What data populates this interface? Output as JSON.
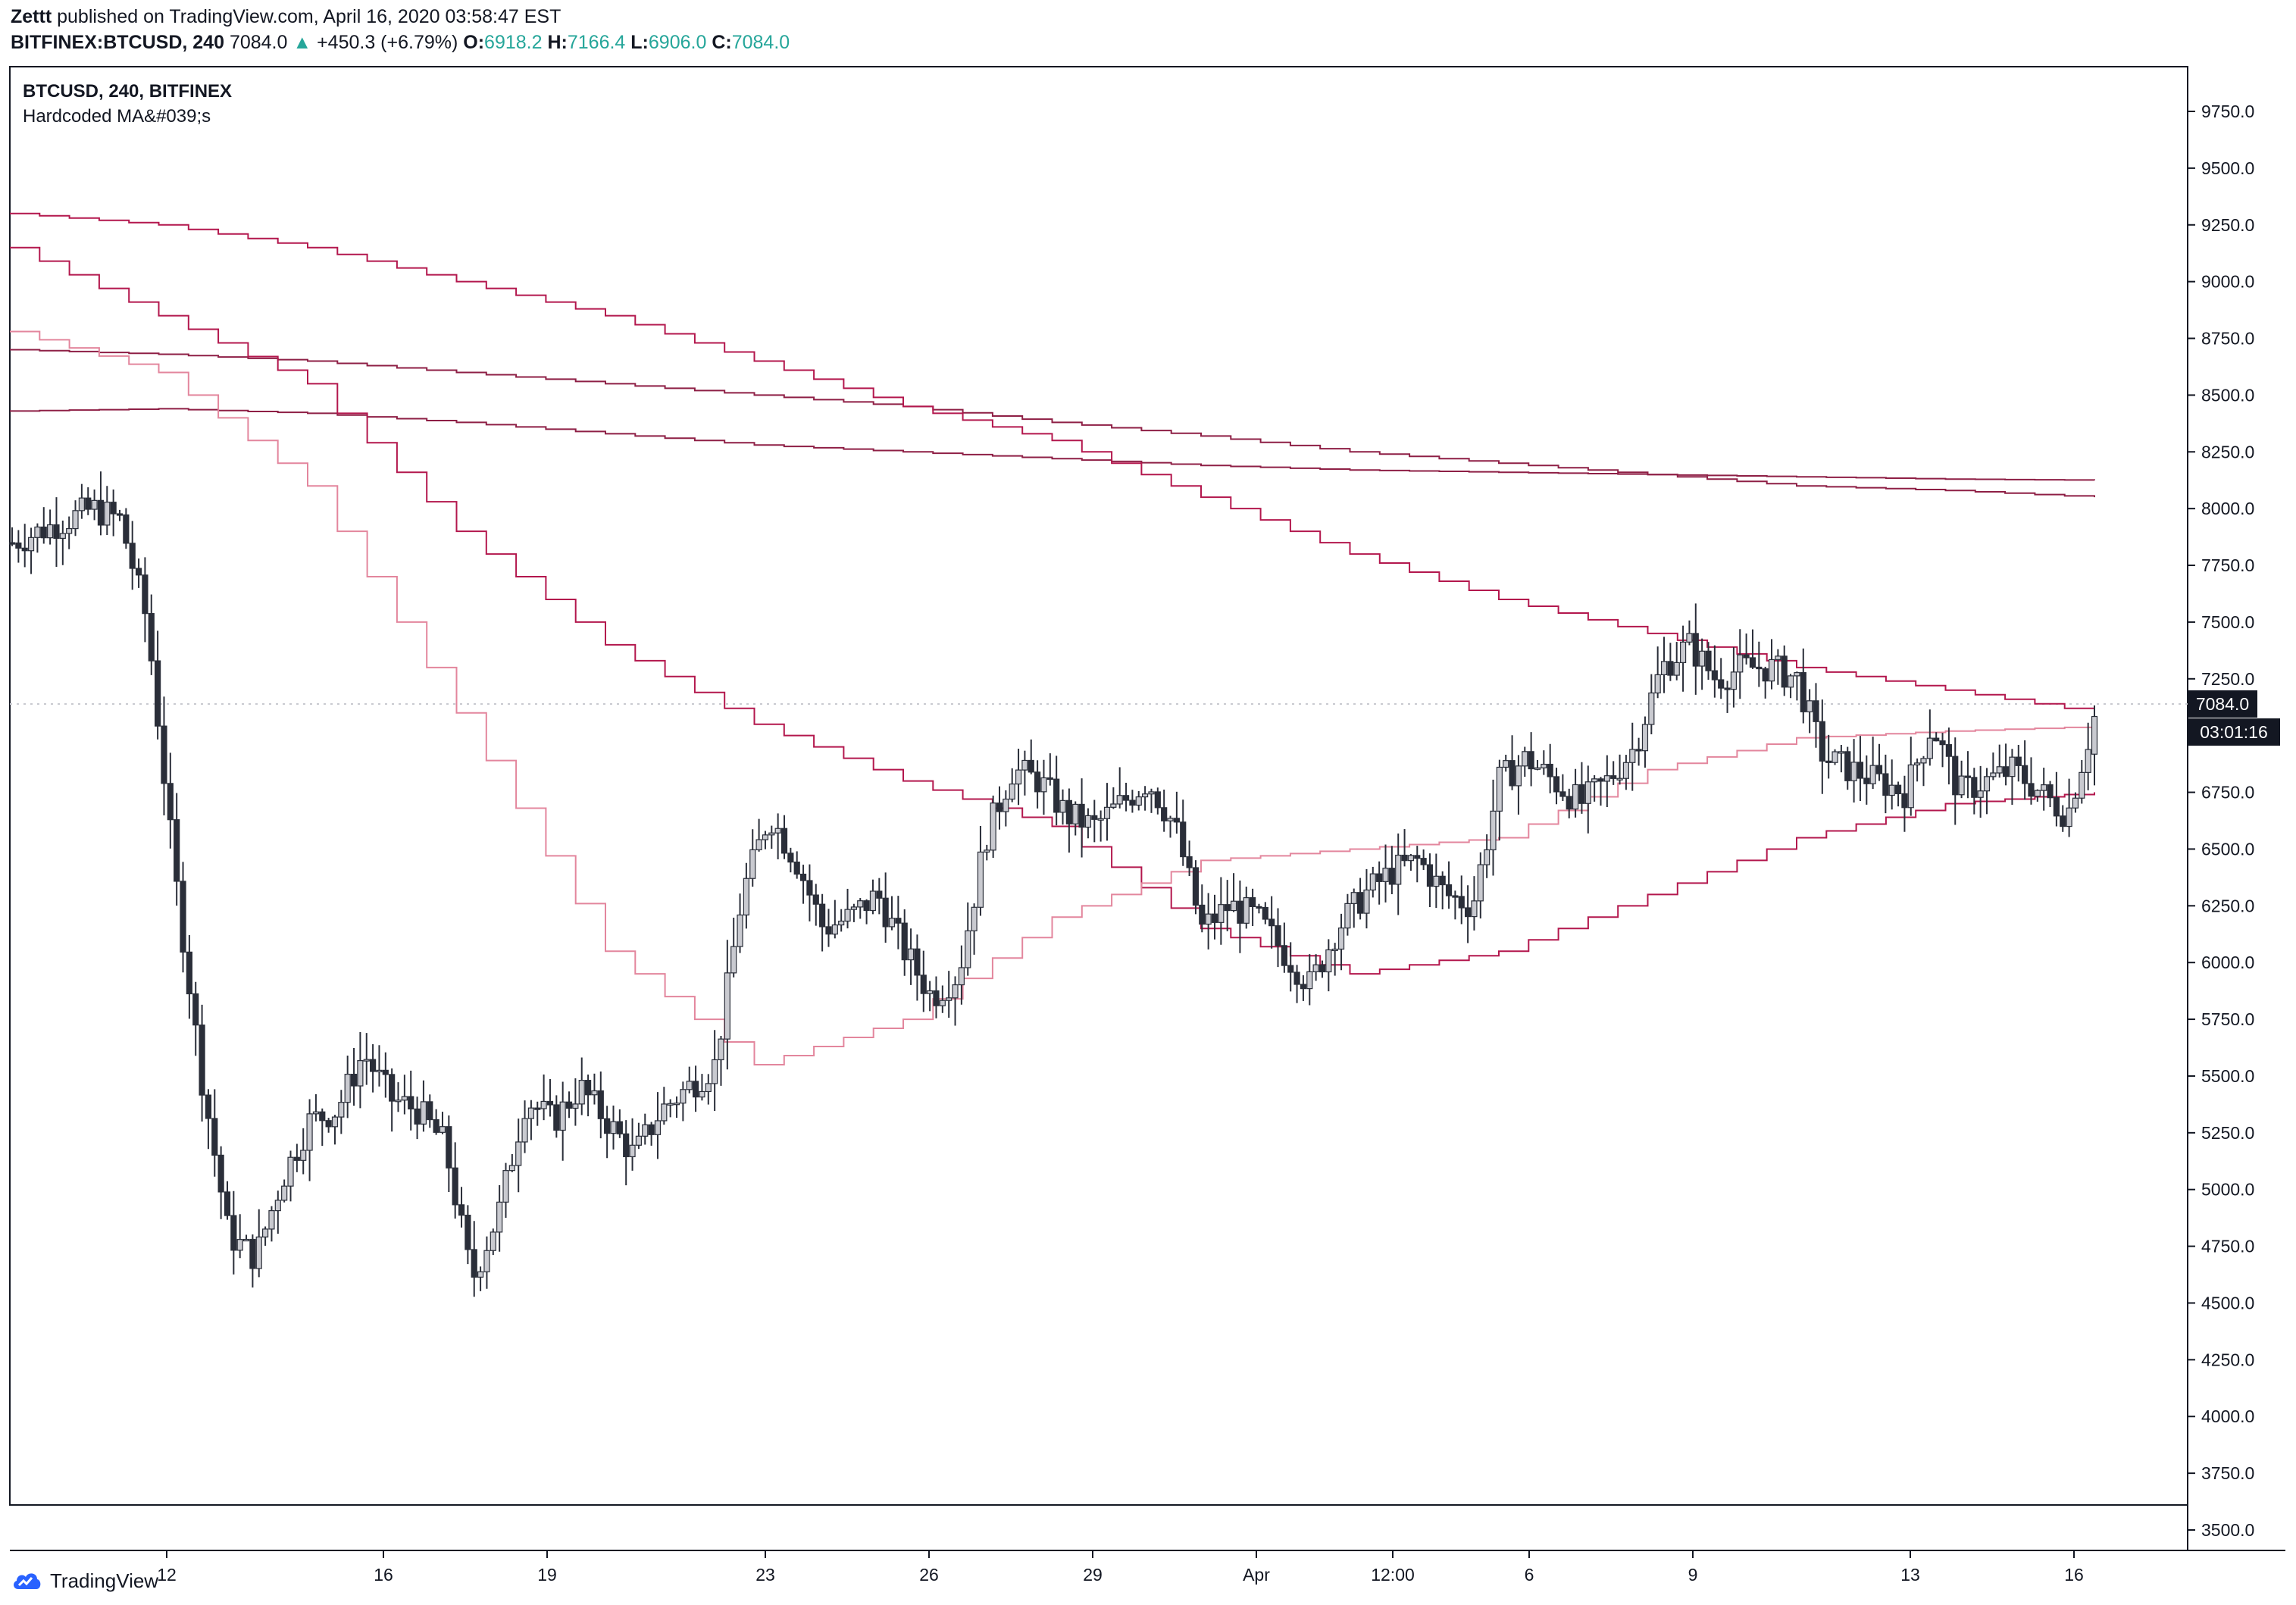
{
  "header": {
    "author": "Zettt",
    "published": "published on TradingView.com, April 16, 2020 03:58:47 EST",
    "symbol": "BITFINEX:BTCUSD, 240",
    "last": "7084.0",
    "arrow": "▲",
    "change": "+450.3 (+6.79%)",
    "o_label": "O:",
    "o_value": "6918.2",
    "h_label": "H:",
    "h_value": "7166.4",
    "l_label": "L:",
    "l_value": "6906.0",
    "c_label": "C:",
    "c_value": "7084.0"
  },
  "legend": {
    "line1": "BTCUSD, 240, BITFINEX",
    "line2": "Hardcoded MA&#039;s"
  },
  "price_label": "7084.0",
  "countdown_label": "03:01:16",
  "footer": {
    "brand": "TradingView"
  },
  "colors": {
    "candle_up": "#c9cad0",
    "candle_down": "#2a2e39",
    "ma_dark": "#8e1f45",
    "ma_mid": "#b3174d",
    "ma_light": "#e3869d"
  },
  "chart_data": {
    "type": "candlestick",
    "symbol": "BTCUSD",
    "interval": "240",
    "exchange": "BITFINEX",
    "ylim": [
      3500,
      9900
    ],
    "y_ticks": [
      9750,
      9500,
      9250,
      9000,
      8750,
      8500,
      8250,
      8000,
      7750,
      7500,
      7250,
      7000,
      6750,
      6500,
      6250,
      6000,
      5750,
      5500,
      5250,
      5000,
      4750,
      4500,
      4250,
      4000,
      3750,
      3500
    ],
    "x_ticks": [
      "12",
      "16",
      "19",
      "23",
      "26",
      "29",
      "Apr",
      "12:00",
      "6",
      "9",
      "13",
      "16"
    ],
    "close_path": [
      7850,
      7900,
      7950,
      8000,
      7950,
      7500,
      6400,
      5500,
      4800,
      4700,
      5050,
      5300,
      5350,
      5600,
      5400,
      5350,
      5200,
      4600,
      4900,
      5400,
      5300,
      5450,
      5300,
      5150,
      5350,
      5450,
      5550,
      6300,
      6650,
      6450,
      6150,
      6200,
      6300,
      6050,
      5850,
      5950,
      6550,
      6850,
      6800,
      6650,
      6600,
      6700,
      6800,
      6600,
      6150,
      6250,
      6200,
      6050,
      5900,
      6150,
      6300,
      6400,
      6450,
      6300,
      6250,
      6800,
      6900,
      6800,
      6700,
      6800,
      6950,
      7300,
      7400,
      7250,
      7300,
      7300,
      7250,
      6900,
      6850,
      6800,
      6750,
      7050,
      6750,
      6800,
      6850,
      6750,
      6650,
      7084
    ],
    "moving_averages": [
      {
        "tone": "dark",
        "values": [
          8700,
          8680,
          8650,
          8600,
          8550,
          8500,
          8450,
          8380,
          8320,
          8250,
          8200,
          8150,
          8100,
          8080,
          8050
        ]
      },
      {
        "tone": "dark",
        "values": [
          8430,
          8440,
          8420,
          8380,
          8330,
          8280,
          8250,
          8220,
          8190,
          8170,
          8160,
          8150,
          8140,
          8130,
          8125
        ]
      },
      {
        "tone": "mid",
        "values": [
          9300,
          9250,
          9150,
          9000,
          8850,
          8650,
          8450,
          8300,
          8050,
          7800,
          7600,
          7450,
          7300,
          7200,
          7100
        ]
      },
      {
        "tone": "mid",
        "values": [
          9150,
          8850,
          8550,
          7900,
          7400,
          7050,
          6800,
          6600,
          6150,
          5950,
          6050,
          6300,
          6550,
          6700,
          6750
        ]
      },
      {
        "tone": "light",
        "values": [
          8780,
          8600,
          8100,
          7100,
          6050,
          5550,
          5750,
          6200,
          6450,
          6500,
          6550,
          6850,
          6990,
          7020,
          7040
        ]
      }
    ]
  }
}
